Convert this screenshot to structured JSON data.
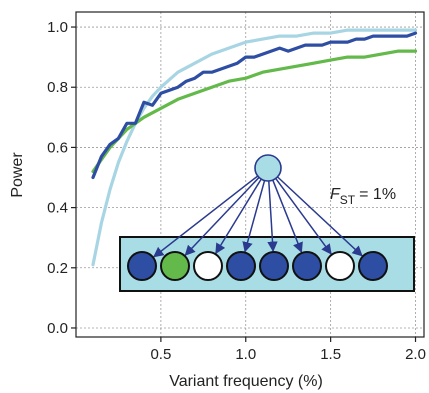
{
  "chart_data": {
    "type": "line",
    "xlabel": "Variant frequency (%)",
    "ylabel": "Power",
    "xlim": [
      0.0,
      2.05
    ],
    "ylim": [
      -0.03,
      1.05
    ],
    "xticks": [
      "0.5",
      "1.0",
      "1.5",
      "2.0"
    ],
    "yticks": [
      "0.0",
      "0.2",
      "0.4",
      "0.6",
      "0.8",
      "1.0"
    ],
    "grid": true,
    "legend": "none",
    "series": [
      {
        "color": "#2e4ea3",
        "x": [
          0.1,
          0.15,
          0.2,
          0.25,
          0.3,
          0.35,
          0.4,
          0.45,
          0.5,
          0.55,
          0.6,
          0.65,
          0.7,
          0.75,
          0.8,
          0.85,
          0.9,
          0.95,
          1.0,
          1.05,
          1.1,
          1.15,
          1.2,
          1.25,
          1.3,
          1.35,
          1.4,
          1.45,
          1.5,
          1.55,
          1.6,
          1.65,
          1.7,
          1.75,
          1.8,
          1.85,
          1.9,
          1.95,
          2.0
        ],
        "values": [
          0.5,
          0.57,
          0.61,
          0.63,
          0.68,
          0.68,
          0.75,
          0.74,
          0.78,
          0.79,
          0.8,
          0.82,
          0.83,
          0.85,
          0.85,
          0.86,
          0.87,
          0.88,
          0.9,
          0.9,
          0.91,
          0.92,
          0.93,
          0.92,
          0.93,
          0.94,
          0.94,
          0.94,
          0.95,
          0.95,
          0.95,
          0.96,
          0.96,
          0.97,
          0.97,
          0.97,
          0.97,
          0.97,
          0.98
        ]
      },
      {
        "color": "#63b94a",
        "x": [
          0.1,
          0.2,
          0.3,
          0.4,
          0.5,
          0.6,
          0.7,
          0.8,
          0.9,
          1.0,
          1.1,
          1.2,
          1.3,
          1.4,
          1.5,
          1.6,
          1.7,
          1.8,
          1.9,
          2.0
        ],
        "values": [
          0.52,
          0.6,
          0.66,
          0.7,
          0.73,
          0.76,
          0.78,
          0.8,
          0.82,
          0.83,
          0.85,
          0.86,
          0.87,
          0.88,
          0.89,
          0.9,
          0.9,
          0.91,
          0.92,
          0.92
        ]
      },
      {
        "color": "#a8d5e3",
        "x": [
          0.1,
          0.15,
          0.2,
          0.25,
          0.3,
          0.35,
          0.4,
          0.45,
          0.5,
          0.6,
          0.7,
          0.8,
          0.9,
          1.0,
          1.1,
          1.2,
          1.3,
          1.4,
          1.5,
          1.6,
          1.7,
          1.8,
          1.9,
          2.0
        ],
        "values": [
          0.21,
          0.35,
          0.46,
          0.55,
          0.62,
          0.68,
          0.73,
          0.77,
          0.8,
          0.85,
          0.88,
          0.91,
          0.93,
          0.95,
          0.96,
          0.97,
          0.97,
          0.98,
          0.98,
          0.99,
          0.99,
          0.99,
          0.99,
          0.99
        ]
      }
    ],
    "annotation": {
      "symbol": "F",
      "subscript": "ST",
      "text": "= 1%"
    },
    "inset": {
      "box_fill": "#a9dde5",
      "node_fill": "#a9dde5",
      "arrow_color": "#2a3a8f",
      "circles": [
        "#2e4ea3",
        "#63b94a",
        "#ffffff",
        "#2e4ea3",
        "#2e4ea3",
        "#2e4ea3",
        "#ffffff",
        "#2e4ea3"
      ]
    }
  }
}
